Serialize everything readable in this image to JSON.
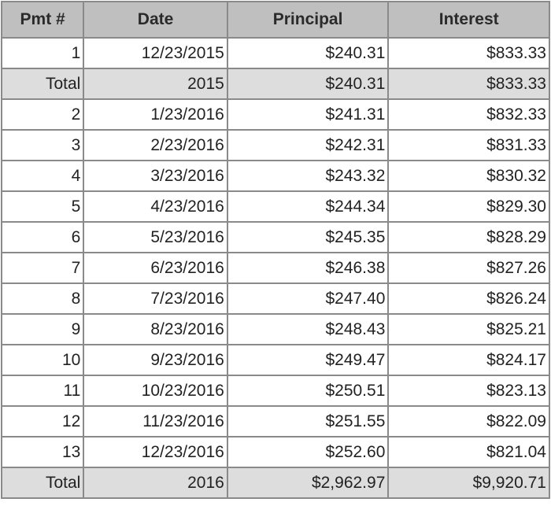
{
  "table": {
    "headers": [
      "Pmt #",
      "Date",
      "Principal",
      "Interest"
    ],
    "rows": [
      {
        "type": "payment",
        "cells": [
          "1",
          "12/23/2015",
          "$240.31",
          "$833.33"
        ]
      },
      {
        "type": "total",
        "cells": [
          "Total",
          "2015",
          "$240.31",
          "$833.33"
        ]
      },
      {
        "type": "payment",
        "cells": [
          "2",
          "1/23/2016",
          "$241.31",
          "$832.33"
        ]
      },
      {
        "type": "payment",
        "cells": [
          "3",
          "2/23/2016",
          "$242.31",
          "$831.33"
        ]
      },
      {
        "type": "payment",
        "cells": [
          "4",
          "3/23/2016",
          "$243.32",
          "$830.32"
        ]
      },
      {
        "type": "payment",
        "cells": [
          "5",
          "4/23/2016",
          "$244.34",
          "$829.30"
        ]
      },
      {
        "type": "payment",
        "cells": [
          "6",
          "5/23/2016",
          "$245.35",
          "$828.29"
        ]
      },
      {
        "type": "payment",
        "cells": [
          "7",
          "6/23/2016",
          "$246.38",
          "$827.26"
        ]
      },
      {
        "type": "payment",
        "cells": [
          "8",
          "7/23/2016",
          "$247.40",
          "$826.24"
        ]
      },
      {
        "type": "payment",
        "cells": [
          "9",
          "8/23/2016",
          "$248.43",
          "$825.21"
        ]
      },
      {
        "type": "payment",
        "cells": [
          "10",
          "9/23/2016",
          "$249.47",
          "$824.17"
        ]
      },
      {
        "type": "payment",
        "cells": [
          "11",
          "10/23/2016",
          "$250.51",
          "$823.13"
        ]
      },
      {
        "type": "payment",
        "cells": [
          "12",
          "11/23/2016",
          "$251.55",
          "$822.09"
        ]
      },
      {
        "type": "payment",
        "cells": [
          "13",
          "12/23/2016",
          "$252.60",
          "$821.04"
        ]
      },
      {
        "type": "total",
        "cells": [
          "Total",
          "2016",
          "$2,962.97",
          "$9,920.71"
        ]
      }
    ]
  },
  "colors": {
    "header_bg": "#bfbfbf",
    "total_row_bg": "#dddddd",
    "border": "#8a8a8a"
  }
}
